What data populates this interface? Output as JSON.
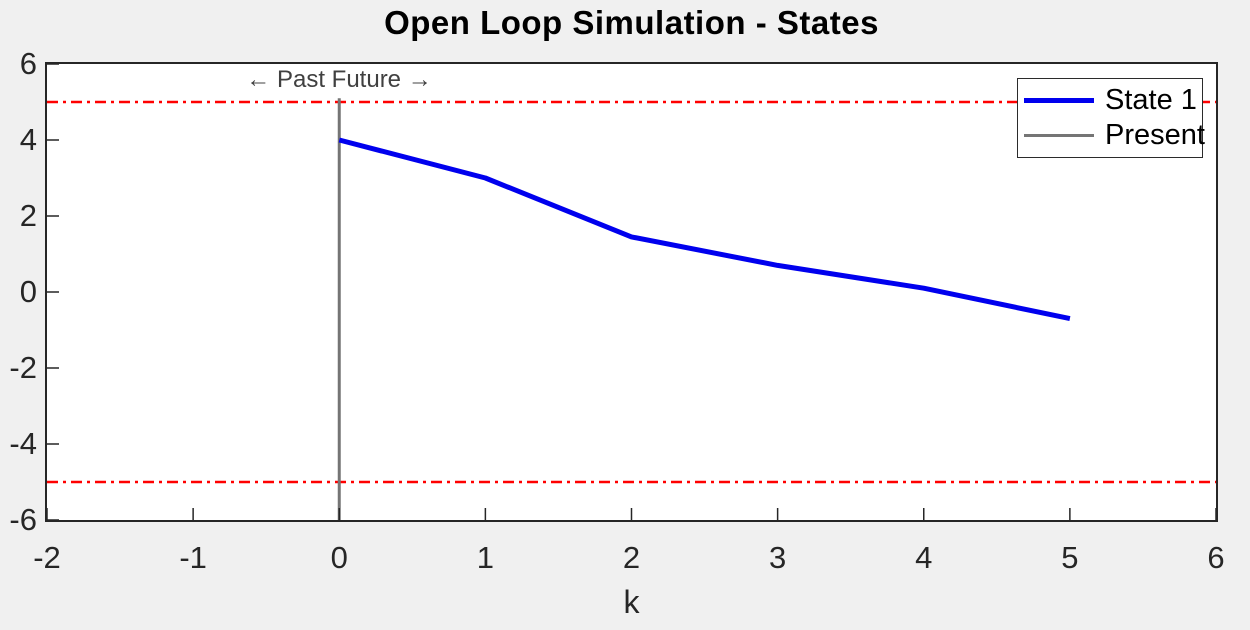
{
  "figure": {
    "background_color": "#F0F0F0",
    "plot_background_color": "#FFFFFF",
    "axis_color": "#262626"
  },
  "annotation": {
    "text": "← Past Future →",
    "color": "#404040"
  },
  "chart_data": {
    "type": "line",
    "title": "Open Loop Simulation - States",
    "xlabel": "k",
    "ylabel": "",
    "xlim": [
      -2,
      6
    ],
    "ylim": [
      -6,
      6
    ],
    "xticks": [
      -2,
      -1,
      0,
      1,
      2,
      3,
      4,
      5,
      6
    ],
    "yticks": [
      -6,
      -4,
      -2,
      0,
      2,
      4,
      6
    ],
    "grid": false,
    "legend_position": "northeast",
    "series": [
      {
        "name": "State 1",
        "color": "#0000EE",
        "line_width": 5,
        "x": [
          0,
          1,
          2,
          3,
          4,
          5
        ],
        "y": [
          4,
          3,
          1.45,
          0.7,
          0.1,
          -0.7
        ]
      }
    ],
    "present_line": {
      "label": "Present",
      "color": "#757575",
      "line_width": 3,
      "x": 0,
      "y_from": -6,
      "y_to": 5.1
    },
    "constraint_lines": {
      "color": "#FF0000",
      "style": "dash-dot",
      "line_width": 2.5,
      "values": [
        5,
        -5
      ]
    }
  }
}
